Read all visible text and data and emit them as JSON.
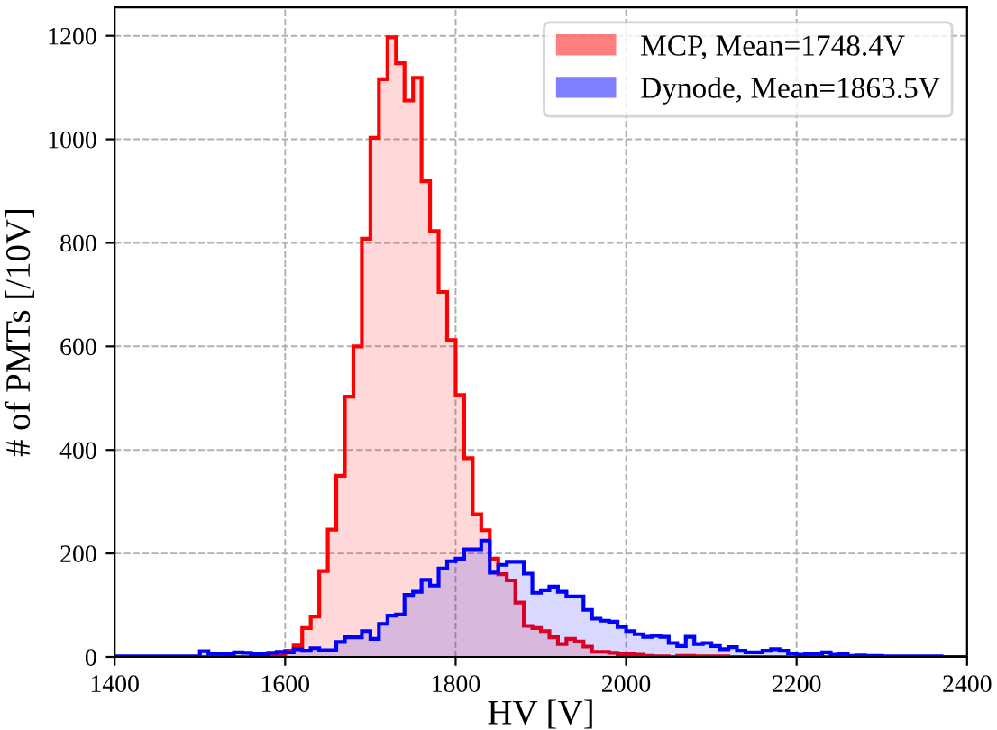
{
  "chart_data": {
    "type": "histogram",
    "xlabel": "HV [V]",
    "ylabel": "# of PMTs [/10V]",
    "bins": [
      1400,
      1410,
      1420,
      1430,
      1440,
      1450,
      1460,
      1470,
      1480,
      1490,
      1500,
      1510,
      1520,
      1530,
      1540,
      1550,
      1560,
      1570,
      1580,
      1590,
      1600,
      1610,
      1620,
      1630,
      1640,
      1650,
      1660,
      1670,
      1680,
      1690,
      1700,
      1710,
      1720,
      1730,
      1740,
      1750,
      1760,
      1770,
      1780,
      1790,
      1800,
      1810,
      1820,
      1830,
      1840,
      1850,
      1860,
      1870,
      1880,
      1890,
      1900,
      1910,
      1920,
      1930,
      1940,
      1950,
      1960,
      1970,
      1980,
      1990,
      2000,
      2010,
      2020,
      2030,
      2040,
      2050,
      2060,
      2070,
      2080,
      2090,
      2100,
      2110,
      2120,
      2130,
      2140,
      2150,
      2160,
      2170,
      2180,
      2190,
      2200,
      2210,
      2220,
      2230,
      2240,
      2250,
      2260,
      2270,
      2280,
      2290,
      2300,
      2310,
      2320,
      2330,
      2340,
      2350,
      2360,
      2370,
      2380,
      2390,
      2400
    ],
    "series": [
      {
        "name": "MCP, Mean=1748.4V",
        "color": "#ff0000",
        "values": [
          0,
          0,
          0,
          0,
          0,
          0,
          0,
          0,
          0,
          0,
          0,
          0,
          0,
          0,
          0,
          0,
          1,
          2,
          2,
          4,
          12,
          22,
          56,
          78,
          166,
          246,
          350,
          503,
          600,
          808,
          1003,
          1116,
          1197,
          1147,
          1075,
          1119,
          919,
          823,
          705,
          612,
          506,
          384,
          276,
          245,
          190,
          160,
          148,
          105,
          60,
          56,
          50,
          38,
          25,
          35,
          30,
          20,
          10,
          10,
          8,
          5,
          5,
          4,
          2,
          1,
          1,
          0,
          2,
          2,
          1,
          1,
          1,
          1,
          0,
          0,
          0,
          0,
          0,
          0,
          0,
          0,
          0,
          0,
          0,
          0,
          0,
          0,
          0,
          0,
          0,
          0,
          0,
          0,
          0,
          0,
          0,
          0,
          0,
          0,
          0,
          0
        ]
      },
      {
        "name": "Dynode, Mean=1863.5V",
        "color": "#0000ff",
        "values": [
          1,
          1,
          1,
          1,
          1,
          1,
          1,
          1,
          1,
          1,
          11,
          6,
          6,
          5,
          9,
          8,
          5,
          5,
          8,
          10,
          9,
          15,
          12,
          17,
          13,
          13,
          29,
          38,
          38,
          50,
          35,
          64,
          80,
          82,
          120,
          126,
          149,
          138,
          171,
          185,
          190,
          208,
          208,
          225,
          163,
          178,
          184,
          184,
          161,
          124,
          129,
          136,
          126,
          117,
          117,
          91,
          74,
          70,
          68,
          58,
          50,
          44,
          39,
          41,
          39,
          27,
          21,
          39,
          25,
          27,
          21,
          15,
          19,
          12,
          9,
          9,
          12,
          15,
          12,
          7,
          4,
          6,
          6,
          9,
          4,
          6,
          2,
          3,
          2,
          2,
          1,
          1,
          1,
          1,
          1,
          1,
          1,
          0,
          0,
          0
        ]
      }
    ],
    "xlim": [
      1400,
      2400
    ],
    "xticks": [
      1400,
      1600,
      1800,
      2000,
      2200,
      2400
    ],
    "ylim": [
      0,
      1255
    ],
    "yticks": [
      0,
      200,
      400,
      600,
      800,
      1000,
      1200
    ],
    "grid": true,
    "legend": "top right",
    "line_style": "solid"
  }
}
